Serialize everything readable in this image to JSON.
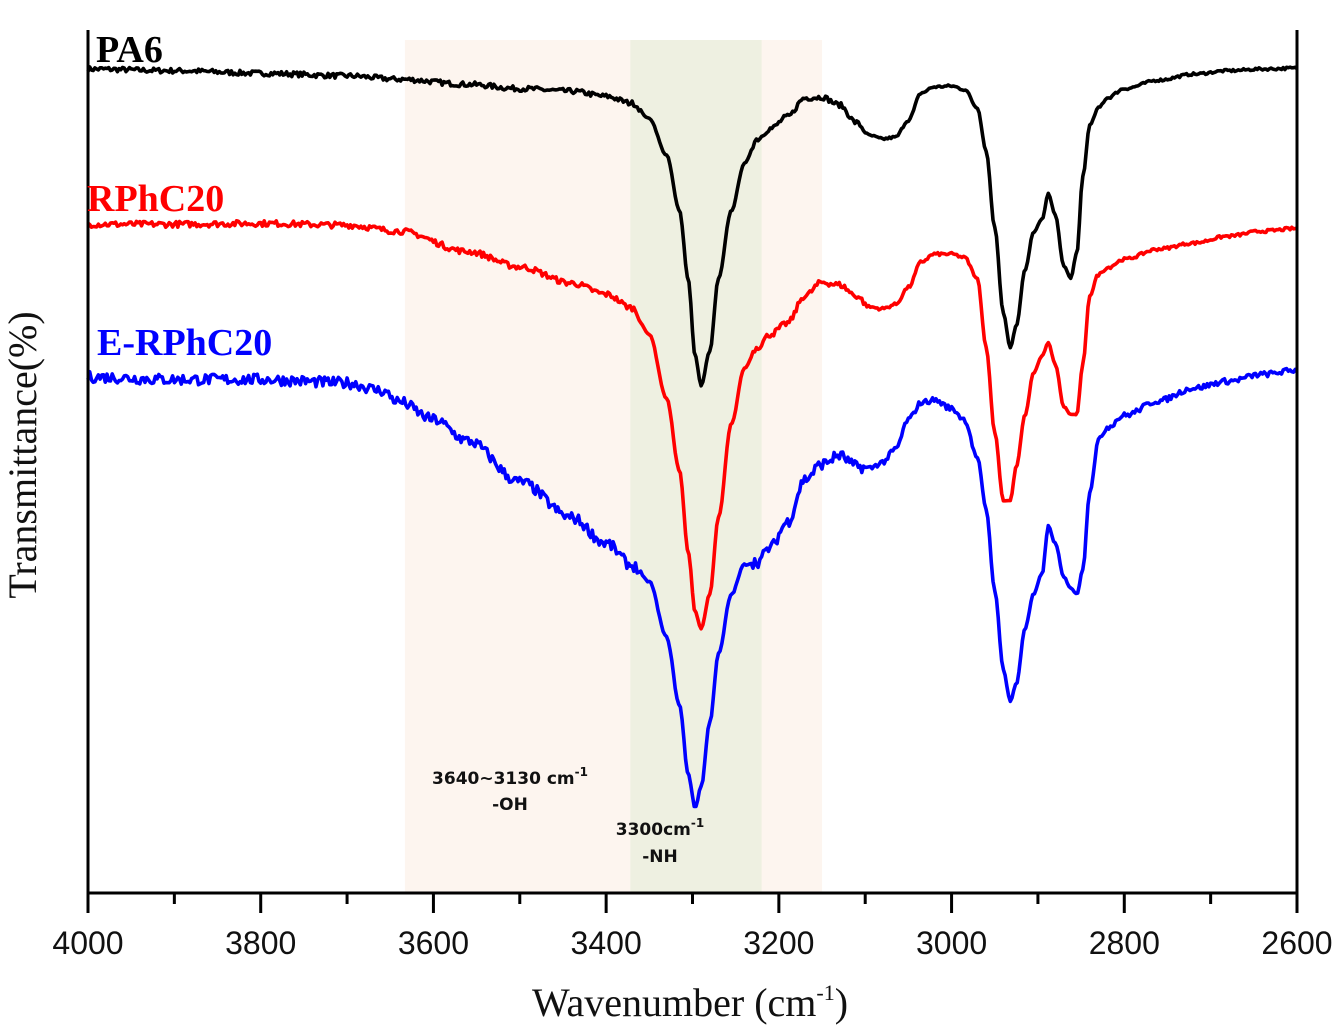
{
  "chart_data": {
    "type": "line",
    "title": "",
    "xlabel": "Wavenumber (cm",
    "xlabel_sup": "-1",
    "xlabel_close": ")",
    "ylabel": "Transmittance(%)",
    "xlim": [
      4000,
      2600
    ],
    "x_reversed": true,
    "ylim": [
      0,
      100
    ],
    "y_units": "arbitrary (offset, normalized to plot height)",
    "grid": false,
    "x_ticks": [
      4000,
      3800,
      3600,
      3400,
      3200,
      3000,
      2800,
      2600
    ],
    "x_tick_labels": [
      "4000",
      "3800",
      "3600",
      "3400",
      "3200",
      "3000",
      "2800",
      "2600"
    ],
    "x_minor_ticks": [
      3900,
      3700,
      3500,
      3300,
      3100,
      2900,
      2700
    ],
    "bands": [
      {
        "name": "OH region",
        "from": 3633,
        "to": 3150,
        "color": "#fdf5ef"
      },
      {
        "name": "NH region",
        "from": 3372,
        "to": 3220,
        "color": "#eef0e1"
      }
    ],
    "annotations": [
      {
        "name": "oh-annotation",
        "line1": "3640~3130 cm",
        "sup": "-1",
        "line2": "-OH"
      },
      {
        "name": "nh-annotation",
        "line1": "3300cm",
        "sup": "-1",
        "line2": "-NH"
      }
    ],
    "series": [
      {
        "name": "PA6",
        "color": "#000000",
        "noise": 0.6,
        "x": [
          4000,
          3900,
          3800,
          3700,
          3640,
          3560,
          3500,
          3440,
          3400,
          3370,
          3350,
          3330,
          3315,
          3305,
          3297,
          3290,
          3280,
          3270,
          3255,
          3240,
          3225,
          3210,
          3190,
          3170,
          3150,
          3130,
          3110,
          3095,
          3080,
          3065,
          3050,
          3035,
          3020,
          3000,
          2985,
          2970,
          2960,
          2950,
          2940,
          2932,
          2925,
          2915,
          2905,
          2895,
          2888,
          2880,
          2870,
          2862,
          2855,
          2848,
          2840,
          2830,
          2820,
          2800,
          2760,
          2720,
          2680,
          2640,
          2600
        ],
        "y": [
          96.6,
          96.4,
          96.1,
          95.8,
          95.4,
          94.8,
          94.3,
          94.0,
          93.4,
          92.6,
          90.8,
          86.5,
          80.0,
          72.0,
          63.0,
          59.5,
          63.5,
          72.0,
          80.0,
          85.5,
          88.4,
          89.6,
          91.0,
          93.2,
          93.3,
          92.4,
          90.3,
          88.8,
          88.4,
          88.6,
          90.6,
          93.8,
          94.5,
          94.6,
          94.2,
          92.0,
          87.0,
          78.0,
          68.0,
          63.9,
          66.5,
          73.0,
          77.5,
          79.0,
          82.0,
          79.5,
          73.5,
          72.1,
          75.0,
          84.0,
          90.0,
          92.0,
          93.2,
          94.3,
          95.3,
          96.0,
          96.4,
          96.6,
          96.7
        ]
      },
      {
        "name": "RPhC20",
        "color": "#ff0000",
        "noise": 0.7,
        "x": [
          4000,
          3900,
          3800,
          3700,
          3640,
          3560,
          3500,
          3440,
          3400,
          3370,
          3350,
          3330,
          3315,
          3305,
          3297,
          3290,
          3280,
          3270,
          3255,
          3240,
          3225,
          3210,
          3190,
          3170,
          3150,
          3130,
          3110,
          3095,
          3080,
          3065,
          3050,
          3035,
          3020,
          3000,
          2985,
          2970,
          2960,
          2950,
          2940,
          2932,
          2925,
          2915,
          2905,
          2895,
          2888,
          2880,
          2870,
          2862,
          2855,
          2848,
          2840,
          2830,
          2820,
          2800,
          2760,
          2720,
          2680,
          2640,
          2600
        ],
        "y": [
          78.4,
          78.4,
          78.5,
          78.3,
          77.6,
          75.2,
          73.4,
          71.5,
          70.2,
          68.6,
          65.5,
          58.0,
          49.5,
          40.0,
          33.0,
          31.0,
          35.0,
          44.0,
          55.0,
          61.5,
          64.0,
          65.5,
          66.8,
          70.0,
          71.6,
          71.3,
          70.0,
          68.7,
          68.5,
          69.0,
          71.0,
          74.0,
          74.9,
          74.9,
          74.5,
          72.0,
          64.0,
          54.0,
          46.0,
          46.0,
          50.0,
          56.0,
          61.0,
          63.0,
          64.5,
          62.0,
          57.0,
          56.1,
          56.1,
          62.0,
          70.0,
          72.5,
          73.3,
          74.3,
          75.5,
          76.2,
          77.0,
          77.6,
          77.9
        ]
      },
      {
        "name": "E-RPhC20",
        "color": "#0000ff",
        "noise": 1.3,
        "x": [
          4000,
          3900,
          3800,
          3700,
          3660,
          3640,
          3600,
          3560,
          3500,
          3440,
          3400,
          3370,
          3350,
          3330,
          3315,
          3305,
          3297,
          3290,
          3280,
          3270,
          3255,
          3240,
          3225,
          3210,
          3190,
          3170,
          3150,
          3130,
          3110,
          3095,
          3080,
          3065,
          3050,
          3035,
          3020,
          3000,
          2985,
          2970,
          2960,
          2950,
          2940,
          2932,
          2925,
          2915,
          2905,
          2895,
          2888,
          2880,
          2870,
          2862,
          2855,
          2848,
          2840,
          2830,
          2820,
          2800,
          2760,
          2720,
          2680,
          2640,
          2600
        ],
        "y": [
          60.5,
          60.2,
          60.2,
          59.8,
          58.9,
          57.6,
          55.5,
          53.0,
          48.2,
          44.0,
          41.0,
          38.4,
          36.5,
          30.0,
          22.0,
          14.0,
          10.0,
          12.5,
          20.0,
          28.0,
          35.0,
          38.5,
          38.8,
          40.5,
          43.5,
          48.5,
          50.3,
          51.3,
          50.0,
          49.8,
          50.5,
          52.0,
          55.5,
          57.5,
          57.8,
          56.8,
          55.5,
          51.0,
          45.0,
          35.5,
          26.2,
          22.5,
          24.5,
          31.0,
          35.0,
          37.5,
          43.0,
          41.0,
          37.0,
          35.8,
          35.0,
          38.0,
          47.0,
          53.0,
          54.6,
          56.0,
          57.7,
          59.2,
          60.0,
          60.8,
          61.3
        ]
      }
    ]
  }
}
